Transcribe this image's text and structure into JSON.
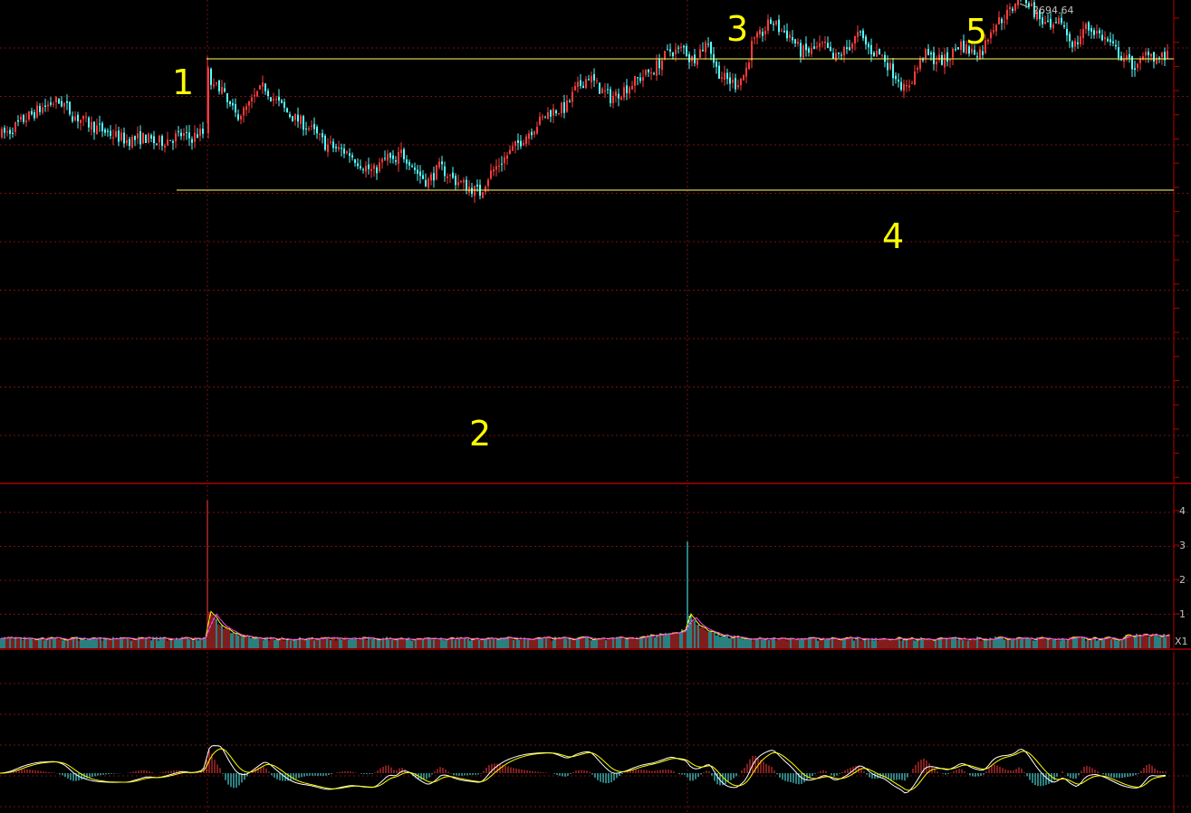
{
  "colors": {
    "background": "#000000",
    "grid": "#7a1010",
    "up": "#ff3b3b",
    "down": "#54ffff",
    "level_line": "#ffff66",
    "ma_short": "#ffffff",
    "ma_long": "#ffff00",
    "ma_volume": "#ff44ff",
    "panel_border": "#b00000"
  },
  "chart_data": {
    "type": "candlestick",
    "panels": [
      "price",
      "volume",
      "macd"
    ],
    "price": {
      "anchors": [
        [
          0,
          84
        ],
        [
          10,
          80
        ],
        [
          25,
          68
        ],
        [
          40,
          58
        ],
        [
          60,
          47
        ],
        [
          70,
          49
        ],
        [
          80,
          62
        ],
        [
          100,
          73
        ],
        [
          120,
          82
        ],
        [
          140,
          90
        ],
        [
          160,
          87
        ],
        [
          172,
          93
        ],
        [
          185,
          89
        ],
        [
          200,
          84
        ],
        [
          210,
          88
        ],
        [
          222,
          81
        ],
        [
          224,
          82
        ],
        [
          230,
          16
        ],
        [
          235,
          35
        ],
        [
          243,
          28
        ],
        [
          250,
          48
        ],
        [
          260,
          62
        ],
        [
          270,
          58
        ],
        [
          284,
          39
        ],
        [
          292,
          30
        ],
        [
          300,
          42
        ],
        [
          310,
          52
        ],
        [
          320,
          62
        ],
        [
          340,
          75
        ],
        [
          360,
          95
        ],
        [
          385,
          104
        ],
        [
          400,
          117
        ],
        [
          412,
          125
        ],
        [
          428,
          108
        ],
        [
          436,
          118
        ],
        [
          442,
          103
        ],
        [
          452,
          112
        ],
        [
          460,
          125
        ],
        [
          472,
          136
        ],
        [
          486,
          119
        ],
        [
          500,
          133
        ],
        [
          515,
          140
        ],
        [
          530,
          148
        ],
        [
          540,
          128
        ],
        [
          552,
          115
        ],
        [
          566,
          100
        ],
        [
          580,
          85
        ],
        [
          595,
          70
        ],
        [
          608,
          58
        ],
        [
          625,
          54
        ],
        [
          635,
          35
        ],
        [
          650,
          19
        ],
        [
          660,
          31
        ],
        [
          674,
          43
        ],
        [
          690,
          33
        ],
        [
          705,
          22
        ],
        [
          720,
          13
        ],
        [
          740,
          -9
        ],
        [
          748,
          -8
        ],
        [
          756,
          -12
        ],
        [
          762,
          2
        ],
        [
          768,
          -3
        ],
        [
          782,
          -20
        ],
        [
          790,
          10
        ],
        [
          800,
          22
        ],
        [
          812,
          28
        ],
        [
          823,
          15
        ],
        [
          830,
          -15
        ],
        [
          842,
          -29
        ],
        [
          852,
          -42
        ],
        [
          860,
          -33
        ],
        [
          872,
          -26
        ],
        [
          884,
          -8
        ],
        [
          894,
          -8
        ],
        [
          910,
          -15
        ],
        [
          920,
          1
        ],
        [
          935,
          -11
        ],
        [
          948,
          -27
        ],
        [
          960,
          -10
        ],
        [
          975,
          -3
        ],
        [
          985,
          14
        ],
        [
          992,
          21
        ],
        [
          999,
          36
        ],
        [
          1008,
          20
        ],
        [
          1020,
          -5
        ],
        [
          1030,
          0
        ],
        [
          1045,
          2
        ],
        [
          1060,
          -17
        ],
        [
          1072,
          -8
        ],
        [
          1085,
          -9
        ],
        [
          1095,
          -36
        ],
        [
          1110,
          -47
        ],
        [
          1118,
          -56
        ],
        [
          1126,
          -77
        ],
        [
          1134,
          -65
        ],
        [
          1142,
          -52
        ],
        [
          1152,
          -40
        ],
        [
          1162,
          -30
        ],
        [
          1172,
          -43
        ],
        [
          1180,
          -22
        ],
        [
          1188,
          -15
        ],
        [
          1197,
          -35
        ],
        [
          1210,
          -30
        ],
        [
          1222,
          -20
        ],
        [
          1236,
          -5
        ],
        [
          1248,
          5
        ],
        [
          1256,
          10
        ],
        [
          1268,
          -10
        ],
        [
          1276,
          0
        ],
        [
          1284,
          -2
        ]
      ],
      "level_high": 2641.5,
      "level_low": 2600.0,
      "max_label": "2694.64"
    },
    "waves": [
      {
        "label": "1",
        "x": 230
      },
      {
        "label": "2",
        "x": 530
      },
      {
        "label": "3",
        "x": 851
      },
      {
        "label": "4",
        "x": 998
      },
      {
        "label": "5",
        "x": 1126
      }
    ],
    "volume": {
      "spikes": [
        {
          "x": 229,
          "v": 4.3
        },
        {
          "x": 759,
          "v": 3.1
        }
      ],
      "y_ticks": [
        "1",
        "2",
        "3",
        "4"
      ],
      "unit_label": "X1"
    },
    "grid": true
  }
}
